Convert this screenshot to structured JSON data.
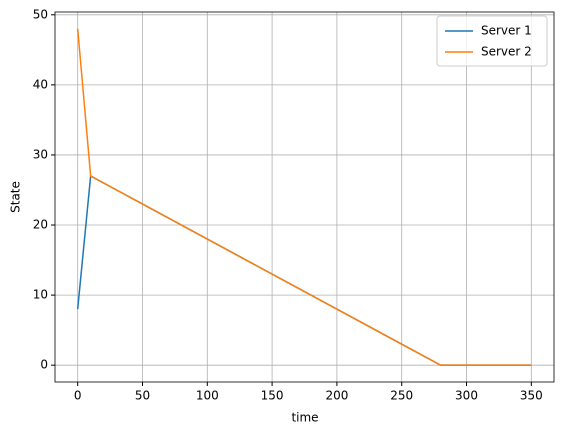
{
  "chart_data": {
    "type": "line",
    "xlabel": "time",
    "ylabel": "State",
    "series": [
      {
        "name": "Server 1",
        "color": "#1f77b4",
        "x": [
          0,
          10,
          280,
          350
        ],
        "values": [
          8,
          27,
          0,
          0
        ]
      },
      {
        "name": "Server 2",
        "color": "#ff7f0e",
        "x": [
          0,
          10,
          280,
          350
        ],
        "values": [
          48,
          27,
          0,
          0
        ]
      }
    ],
    "xlim": [
      -17.5,
      367.5
    ],
    "xticks": [
      0,
      50,
      100,
      150,
      200,
      250,
      300,
      350
    ],
    "ylim": [
      -2.4,
      50.4
    ],
    "yticks": [
      0,
      10,
      20,
      30,
      40,
      50
    ],
    "grid": true,
    "legend": "upper right"
  }
}
